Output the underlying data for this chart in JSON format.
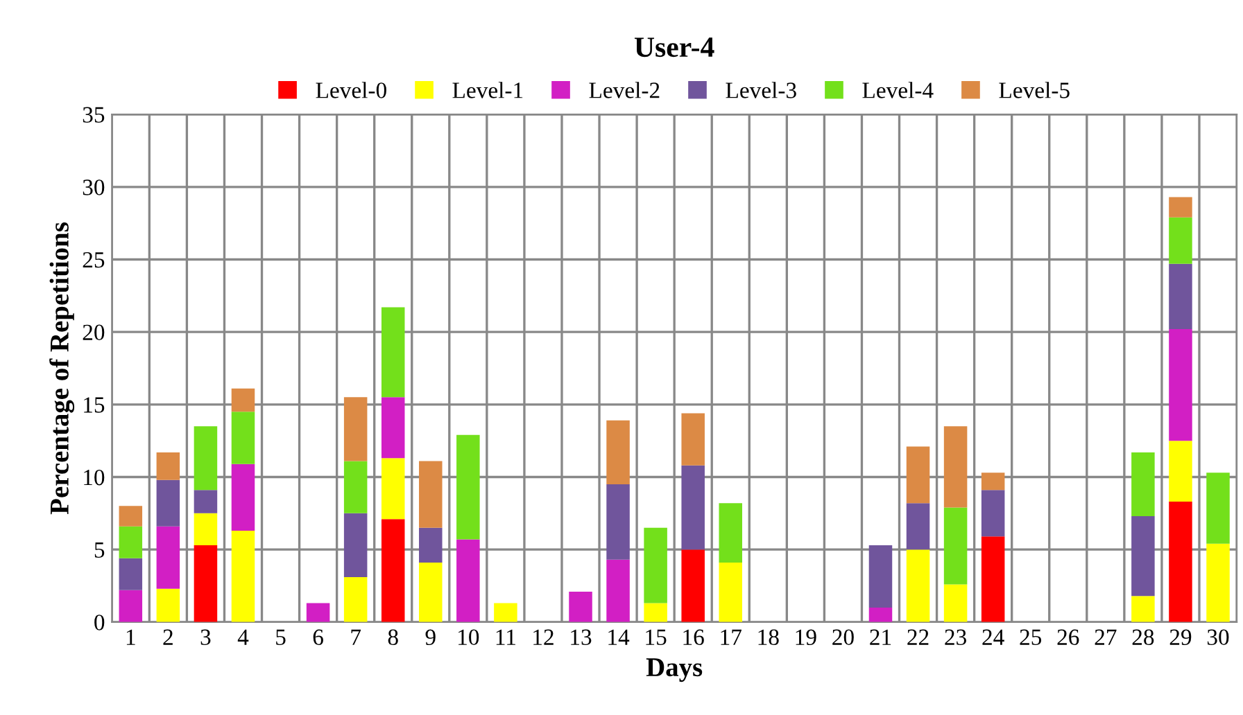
{
  "chart_data": {
    "type": "bar",
    "stacked": true,
    "title": "User-4",
    "xlabel": "Days",
    "ylabel": "Percentage of Repetitions",
    "categories": [
      "1",
      "2",
      "3",
      "4",
      "5",
      "6",
      "7",
      "8",
      "9",
      "10",
      "11",
      "12",
      "13",
      "14",
      "15",
      "16",
      "17",
      "18",
      "19",
      "20",
      "21",
      "22",
      "23",
      "24",
      "25",
      "26",
      "27",
      "28",
      "29",
      "30"
    ],
    "series": [
      {
        "name": "Level-0",
        "color": "#ff0000",
        "values": [
          0,
          0,
          5.3,
          0,
          0,
          0,
          0,
          7.1,
          0,
          0,
          0,
          0,
          0,
          0,
          0,
          5.0,
          0,
          0,
          0,
          0,
          0,
          0,
          0,
          5.9,
          0,
          0,
          0,
          0,
          8.3,
          0
        ]
      },
      {
        "name": "Level-1",
        "color": "#ffff00",
        "values": [
          0,
          2.3,
          2.2,
          6.3,
          0,
          0,
          3.1,
          4.2,
          4.1,
          0,
          1.3,
          0,
          0,
          0,
          1.3,
          0,
          4.1,
          0,
          0,
          0,
          0,
          5.0,
          2.6,
          0,
          0,
          0,
          0,
          1.8,
          4.2,
          5.4
        ]
      },
      {
        "name": "Level-2",
        "color": "#d21fc4",
        "values": [
          2.2,
          4.3,
          0,
          4.6,
          0,
          1.3,
          0,
          4.2,
          0,
          5.7,
          0,
          0,
          2.1,
          4.3,
          0,
          0,
          0,
          0,
          0,
          0,
          1.0,
          0,
          0,
          0,
          0,
          0,
          0,
          0,
          7.7,
          0
        ]
      },
      {
        "name": "Level-3",
        "color": "#70559c",
        "values": [
          2.2,
          3.2,
          1.6,
          0,
          0,
          0,
          4.4,
          0,
          2.4,
          0,
          0,
          0,
          0,
          5.2,
          0,
          5.8,
          0,
          0,
          0,
          0,
          4.3,
          3.2,
          0,
          3.2,
          0,
          0,
          0,
          5.5,
          4.5,
          0
        ]
      },
      {
        "name": "Level-4",
        "color": "#73e01b",
        "values": [
          2.2,
          0,
          4.4,
          3.6,
          0,
          0,
          3.6,
          6.2,
          0,
          7.2,
          0,
          0,
          0,
          0,
          5.2,
          0,
          4.1,
          0,
          0,
          0,
          0,
          0,
          5.3,
          0,
          0,
          0,
          0,
          4.4,
          3.2,
          4.9
        ]
      },
      {
        "name": "Level-5",
        "color": "#dc8a45",
        "values": [
          1.4,
          1.9,
          0,
          1.6,
          0,
          0,
          4.4,
          0,
          4.6,
          0,
          0,
          0,
          0,
          4.4,
          0,
          3.6,
          0,
          0,
          0,
          0,
          0,
          3.9,
          5.6,
          1.2,
          0,
          0,
          0,
          0,
          1.4,
          0
        ]
      }
    ],
    "ylim": [
      0,
      35
    ],
    "yticks": [
      0,
      5,
      10,
      15,
      20,
      25,
      30,
      35
    ],
    "grid": true,
    "legend": "top"
  }
}
